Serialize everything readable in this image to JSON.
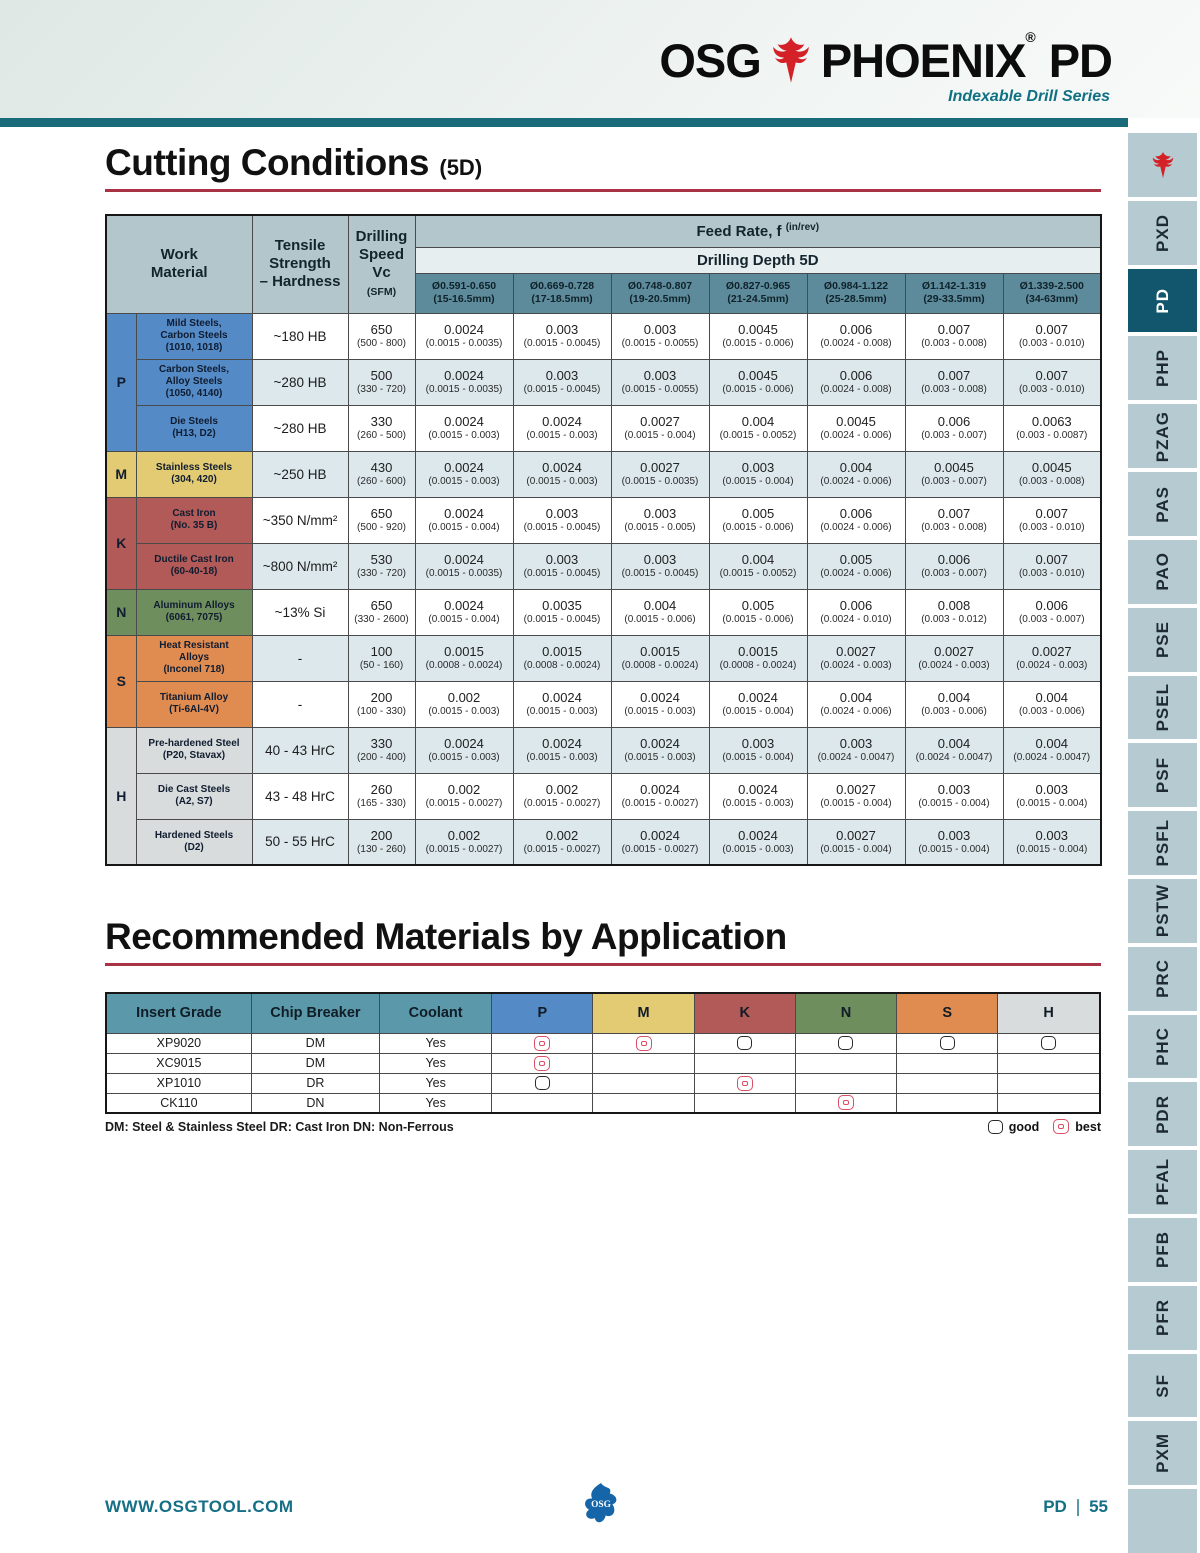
{
  "brand": {
    "osg": "OSG",
    "phoenix": "PHOENIX",
    "reg": "®",
    "series": "PD",
    "tagline": "Indexable Drill Series"
  },
  "section1": {
    "title": "Cutting Conditions",
    "subtitle": "(5D)"
  },
  "cutting_table": {
    "corner": {
      "work_material": "Work\nMaterial",
      "tensile": "Tensile\nStrength\n– Hardness",
      "speed_title": "Drilling\nSpeed\nVc",
      "speed_unit": "(SFM)",
      "feed_rate": "Feed Rate, f",
      "feed_rate_unit": "(in/rev)",
      "depth": "Drilling Depth 5D"
    },
    "diameters": [
      {
        "inch": "Ø0.591-0.650",
        "mm": "(15-16.5mm)"
      },
      {
        "inch": "Ø0.669-0.728",
        "mm": "(17-18.5mm)"
      },
      {
        "inch": "Ø0.748-0.807",
        "mm": "(19-20.5mm)"
      },
      {
        "inch": "Ø0.827-0.965",
        "mm": "(21-24.5mm)"
      },
      {
        "inch": "Ø0.984-1.122",
        "mm": "(25-28.5mm)"
      },
      {
        "inch": "Ø1.142-1.319",
        "mm": "(29-33.5mm)"
      },
      {
        "inch": "Ø1.339-2.500",
        "mm": "(34-63mm)"
      }
    ],
    "groups": [
      {
        "letter": "P",
        "color": "#548bc7",
        "rows": [
          {
            "material": "Mild Steels,\nCarbon Steels\n(1010, 1018)",
            "hardness": "~180 HB",
            "speed": "650",
            "speed_range": "(500 - 800)",
            "feeds": [
              [
                "0.0024",
                "(0.0015 - 0.0035)"
              ],
              [
                "0.003",
                "(0.0015 - 0.0045)"
              ],
              [
                "0.003",
                "(0.0015 - 0.0055)"
              ],
              [
                "0.0045",
                "(0.0015 - 0.006)"
              ],
              [
                "0.006",
                "(0.0024 - 0.008)"
              ],
              [
                "0.007",
                "(0.003 - 0.008)"
              ],
              [
                "0.007",
                "(0.003 - 0.010)"
              ]
            ]
          },
          {
            "material": "Carbon Steels,\nAlloy Steels\n(1050, 4140)",
            "hardness": "~280 HB",
            "speed": "500",
            "speed_range": "(330 - 720)",
            "feeds": [
              [
                "0.0024",
                "(0.0015 - 0.0035)"
              ],
              [
                "0.003",
                "(0.0015 - 0.0045)"
              ],
              [
                "0.003",
                "(0.0015 - 0.0055)"
              ],
              [
                "0.0045",
                "(0.0015 - 0.006)"
              ],
              [
                "0.006",
                "(0.0024 - 0.008)"
              ],
              [
                "0.007",
                "(0.003 - 0.008)"
              ],
              [
                "0.007",
                "(0.003 - 0.010)"
              ]
            ]
          },
          {
            "material": "Die Steels\n(H13, D2)",
            "hardness": "~280 HB",
            "speed": "330",
            "speed_range": "(260 - 500)",
            "feeds": [
              [
                "0.0024",
                "(0.0015 - 0.003)"
              ],
              [
                "0.0024",
                "(0.0015 - 0.003)"
              ],
              [
                "0.0027",
                "(0.0015 - 0.004)"
              ],
              [
                "0.004",
                "(0.0015 - 0.0052)"
              ],
              [
                "0.0045",
                "(0.0024 - 0.006)"
              ],
              [
                "0.006",
                "(0.003 - 0.007)"
              ],
              [
                "0.0063",
                "(0.003 - 0.0087)"
              ]
            ]
          }
        ]
      },
      {
        "letter": "M",
        "color": "#e2cb72",
        "rows": [
          {
            "material": "Stainless Steels\n(304, 420)",
            "hardness": "~250 HB",
            "speed": "430",
            "speed_range": "(260 - 600)",
            "feeds": [
              [
                "0.0024",
                "(0.0015 - 0.003)"
              ],
              [
                "0.0024",
                "(0.0015 - 0.003)"
              ],
              [
                "0.0027",
                "(0.0015 - 0.0035)"
              ],
              [
                "0.003",
                "(0.0015 - 0.004)"
              ],
              [
                "0.004",
                "(0.0024 - 0.006)"
              ],
              [
                "0.0045",
                "(0.003 - 0.007)"
              ],
              [
                "0.0045",
                "(0.003 - 0.008)"
              ]
            ]
          }
        ]
      },
      {
        "letter": "K",
        "color": "#b25a58",
        "rows": [
          {
            "material": "Cast Iron\n(No. 35 B)",
            "hardness": "~350 N/mm²",
            "speed": "650",
            "speed_range": "(500 - 920)",
            "feeds": [
              [
                "0.0024",
                "(0.0015 - 0.004)"
              ],
              [
                "0.003",
                "(0.0015 - 0.0045)"
              ],
              [
                "0.003",
                "(0.0015 - 0.005)"
              ],
              [
                "0.005",
                "(0.0015 - 0.006)"
              ],
              [
                "0.006",
                "(0.0024 - 0.006)"
              ],
              [
                "0.007",
                "(0.003 - 0.008)"
              ],
              [
                "0.007",
                "(0.003 - 0.010)"
              ]
            ]
          },
          {
            "material": "Ductile Cast Iron\n(60-40-18)",
            "hardness": "~800 N/mm²",
            "speed": "530",
            "speed_range": "(330 - 720)",
            "feeds": [
              [
                "0.0024",
                "(0.0015 - 0.0035)"
              ],
              [
                "0.003",
                "(0.0015 - 0.0045)"
              ],
              [
                "0.003",
                "(0.0015 - 0.0045)"
              ],
              [
                "0.004",
                "(0.0015 - 0.0052)"
              ],
              [
                "0.005",
                "(0.0024 - 0.006)"
              ],
              [
                "0.006",
                "(0.003 - 0.007)"
              ],
              [
                "0.007",
                "(0.003 - 0.010)"
              ]
            ]
          }
        ]
      },
      {
        "letter": "N",
        "color": "#6f8e5e",
        "rows": [
          {
            "material": "Aluminum Alloys\n(6061, 7075)",
            "hardness": "~13% Si",
            "speed": "650",
            "speed_range": "(330 - 2600)",
            "feeds": [
              [
                "0.0024",
                "(0.0015 - 0.004)"
              ],
              [
                "0.0035",
                "(0.0015 - 0.0045)"
              ],
              [
                "0.004",
                "(0.0015 - 0.006)"
              ],
              [
                "0.005",
                "(0.0015 - 0.006)"
              ],
              [
                "0.006",
                "(0.0024 - 0.010)"
              ],
              [
                "0.008",
                "(0.003 - 0.012)"
              ],
              [
                "0.006",
                "(0.003 - 0.007)"
              ]
            ]
          }
        ]
      },
      {
        "letter": "S",
        "color": "#e08c50",
        "rows": [
          {
            "material": "Heat Resistant\nAlloys\n(Inconel 718)",
            "hardness": "-",
            "speed": "100",
            "speed_range": "(50 - 160)",
            "feeds": [
              [
                "0.0015",
                "(0.0008 - 0.0024)"
              ],
              [
                "0.0015",
                "(0.0008 - 0.0024)"
              ],
              [
                "0.0015",
                "(0.0008 - 0.0024)"
              ],
              [
                "0.0015",
                "(0.0008 - 0.0024)"
              ],
              [
                "0.0027",
                "(0.0024 - 0.003)"
              ],
              [
                "0.0027",
                "(0.0024 - 0.003)"
              ],
              [
                "0.0027",
                "(0.0024 - 0.003)"
              ]
            ]
          },
          {
            "material": "Titanium Alloy\n(Ti-6Al-4V)",
            "hardness": "-",
            "speed": "200",
            "speed_range": "(100 - 330)",
            "feeds": [
              [
                "0.002",
                "(0.0015 - 0.003)"
              ],
              [
                "0.0024",
                "(0.0015 - 0.003)"
              ],
              [
                "0.0024",
                "(0.0015 - 0.003)"
              ],
              [
                "0.0024",
                "(0.0015 - 0.004)"
              ],
              [
                "0.004",
                "(0.0024 - 0.006)"
              ],
              [
                "0.004",
                "(0.003 - 0.006)"
              ],
              [
                "0.004",
                "(0.003 - 0.006)"
              ]
            ]
          }
        ]
      },
      {
        "letter": "H",
        "color": "#d8dcdc",
        "rows": [
          {
            "material": "Pre-hardened Steel\n(P20, Stavax)",
            "hardness": "40 - 43 HrC",
            "speed": "330",
            "speed_range": "(200 - 400)",
            "feeds": [
              [
                "0.0024",
                "(0.0015 - 0.003)"
              ],
              [
                "0.0024",
                "(0.0015 - 0.003)"
              ],
              [
                "0.0024",
                "(0.0015 - 0.003)"
              ],
              [
                "0.003",
                "(0.0015 - 0.004)"
              ],
              [
                "0.003",
                "(0.0024 - 0.0047)"
              ],
              [
                "0.004",
                "(0.0024 - 0.0047)"
              ],
              [
                "0.004",
                "(0.0024 - 0.0047)"
              ]
            ]
          },
          {
            "material": "Die Cast Steels\n(A2, S7)",
            "hardness": "43 - 48 HrC",
            "speed": "260",
            "speed_range": "(165 - 330)",
            "feeds": [
              [
                "0.002",
                "(0.0015 - 0.0027)"
              ],
              [
                "0.002",
                "(0.0015 - 0.0027)"
              ],
              [
                "0.0024",
                "(0.0015 - 0.0027)"
              ],
              [
                "0.0024",
                "(0.0015 - 0.003)"
              ],
              [
                "0.0027",
                "(0.0015 - 0.004)"
              ],
              [
                "0.003",
                "(0.0015 - 0.004)"
              ],
              [
                "0.003",
                "(0.0015 - 0.004)"
              ]
            ]
          },
          {
            "material": "Hardened Steels\n(D2)",
            "hardness": "50 - 55 HrC",
            "speed": "200",
            "speed_range": "(130 - 260)",
            "feeds": [
              [
                "0.002",
                "(0.0015 - 0.0027)"
              ],
              [
                "0.002",
                "(0.0015 - 0.0027)"
              ],
              [
                "0.0024",
                "(0.0015 - 0.0027)"
              ],
              [
                "0.0024",
                "(0.0015 - 0.003)"
              ],
              [
                "0.0027",
                "(0.0015 - 0.004)"
              ],
              [
                "0.003",
                "(0.0015 - 0.004)"
              ],
              [
                "0.003",
                "(0.0015 - 0.004)"
              ]
            ]
          }
        ]
      }
    ]
  },
  "section2": {
    "title": "Recommended Materials by Application"
  },
  "app_table": {
    "headers": [
      "Insert Grade",
      "Chip Breaker",
      "Coolant"
    ],
    "app_columns": [
      {
        "letter": "P",
        "color": "#548bc7"
      },
      {
        "letter": "M",
        "color": "#e2cb72"
      },
      {
        "letter": "K",
        "color": "#b25a58"
      },
      {
        "letter": "N",
        "color": "#6f8e5e"
      },
      {
        "letter": "S",
        "color": "#e08c50"
      },
      {
        "letter": "H",
        "color": "#d8dcdc"
      }
    ],
    "rows": [
      {
        "grade": "XP9020",
        "breaker": "DM",
        "coolant": "Yes",
        "marks": {
          "P": "best",
          "M": "best",
          "K": "good",
          "N": "good",
          "S": "good",
          "H": "good"
        }
      },
      {
        "grade": "XC9015",
        "breaker": "DM",
        "coolant": "Yes",
        "marks": {
          "P": "best"
        }
      },
      {
        "grade": "XP1010",
        "breaker": "DR",
        "coolant": "Yes",
        "marks": {
          "P": "good",
          "K": "best"
        }
      },
      {
        "grade": "CK110",
        "breaker": "DN",
        "coolant": "Yes",
        "marks": {
          "N": "best"
        }
      }
    ],
    "footnote": "DM: Steel & Stainless Steel   DR: Cast Iron   DN: Non-Ferrous",
    "legend": {
      "good": "good",
      "best": "best"
    }
  },
  "sidebar": {
    "tabs": [
      {
        "icon": "phoenix-icon",
        "label": ""
      },
      {
        "label": "PXD"
      },
      {
        "label": "PD",
        "active": true
      },
      {
        "label": "PHP"
      },
      {
        "label": "PZAG"
      },
      {
        "label": "PAS"
      },
      {
        "label": "PAO"
      },
      {
        "label": "PSE"
      },
      {
        "label": "PSEL"
      },
      {
        "label": "PSF"
      },
      {
        "label": "PSFL"
      },
      {
        "label": "PSTW"
      },
      {
        "label": "PRC"
      },
      {
        "label": "PHC"
      },
      {
        "label": "PDR"
      },
      {
        "label": "PFAL"
      },
      {
        "label": "PFB"
      },
      {
        "label": "PFR"
      },
      {
        "label": "SF"
      },
      {
        "label": "PXM"
      },
      {
        "label": ""
      }
    ]
  },
  "footer": {
    "url": "WWW.OSGTOOL.COM",
    "page_prefix": "PD",
    "page_number": "55"
  },
  "colors": {
    "teal_bar": "#1a6b7a",
    "accent_red": "#a93344",
    "marker_best": "#d94f63",
    "active_tab": "#11566c"
  }
}
